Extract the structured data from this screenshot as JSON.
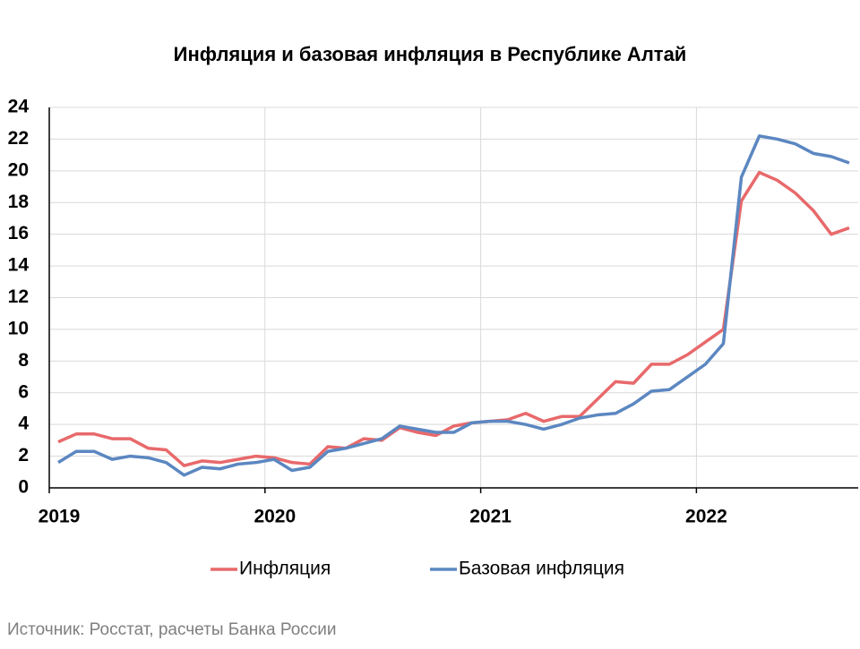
{
  "chart_data": {
    "type": "line",
    "title": "Инфляция и базовая инфляция в Республике Алтай",
    "categories": [
      "2019",
      null,
      null,
      null,
      null,
      null,
      null,
      null,
      null,
      null,
      null,
      null,
      "2020",
      null,
      null,
      null,
      null,
      null,
      null,
      null,
      null,
      null,
      null,
      null,
      "2021",
      null,
      null,
      null,
      null,
      null,
      null,
      null,
      null,
      null,
      null,
      null,
      "2022",
      null,
      null,
      null,
      null,
      null,
      null,
      null,
      null
    ],
    "series": [
      {
        "name": "Инфляция",
        "color": "#e8696b",
        "values": [
          2.9,
          3.4,
          3.4,
          3.1,
          3.1,
          2.5,
          2.4,
          1.4,
          1.7,
          1.6,
          1.8,
          2.0,
          1.9,
          1.6,
          1.5,
          2.6,
          2.5,
          3.1,
          3.0,
          3.8,
          3.5,
          3.3,
          3.9,
          4.1,
          4.2,
          4.3,
          4.7,
          4.2,
          4.5,
          4.5,
          5.6,
          6.7,
          6.6,
          7.8,
          7.8,
          8.4,
          9.2,
          10.0,
          18.1,
          19.9,
          19.4,
          18.6,
          17.5,
          16.0,
          16.4
        ]
      },
      {
        "name": "Базовая инфляция",
        "color": "#5b87c1",
        "values": [
          1.6,
          2.3,
          2.3,
          1.8,
          2.0,
          1.9,
          1.6,
          0.8,
          1.3,
          1.2,
          1.5,
          1.6,
          1.8,
          1.1,
          1.3,
          2.3,
          2.5,
          2.8,
          3.1,
          3.9,
          3.7,
          3.5,
          3.5,
          4.1,
          4.2,
          4.2,
          4.0,
          3.7,
          4.0,
          4.4,
          4.6,
          4.7,
          5.3,
          6.1,
          6.2,
          7.0,
          7.8,
          9.1,
          19.6,
          22.2,
          22.0,
          21.7,
          21.1,
          20.9,
          20.5
        ]
      }
    ],
    "ylim": [
      0,
      24
    ],
    "yticks": [
      0,
      2,
      4,
      6,
      8,
      10,
      12,
      14,
      16,
      18,
      20,
      22,
      24
    ],
    "grid": true,
    "legend": "bottom",
    "source": "Источник: Росстат, расчеты Банка России"
  }
}
